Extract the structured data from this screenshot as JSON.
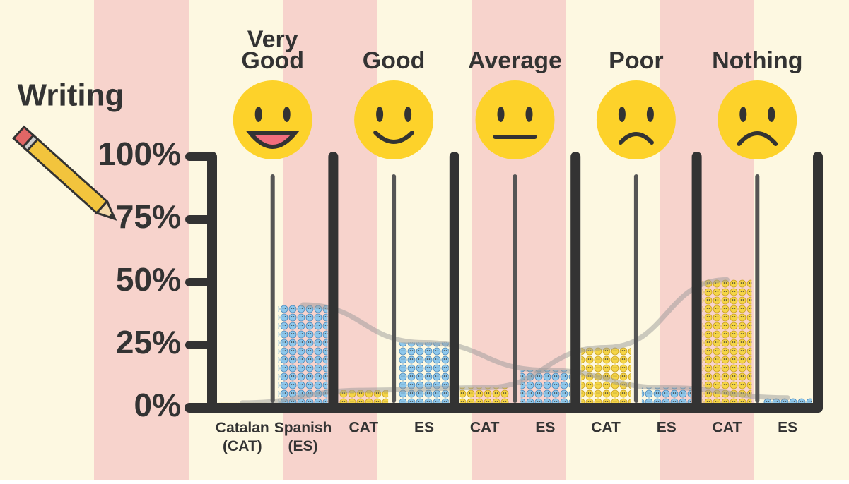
{
  "chart_data": {
    "type": "bar",
    "title": "Writing",
    "categories": [
      "Very Good",
      "Good",
      "Average",
      "Poor",
      "Nothing"
    ],
    "series": [
      {
        "name": "Catalan (CAT)",
        "short": "CAT",
        "color": "#f5d547",
        "values": [
          2,
          7,
          8,
          24,
          51
        ]
      },
      {
        "name": "Spanish (ES)",
        "short": "ES",
        "color": "#8ec8ec",
        "values": [
          41,
          26,
          15,
          8,
          4
        ]
      }
    ],
    "ylim": [
      0,
      100
    ],
    "yticks": [
      {
        "value": 0,
        "label": "0%"
      },
      {
        "value": 25,
        "label": "25%"
      },
      {
        "value": 50,
        "label": "50%"
      },
      {
        "value": 75,
        "label": "75%"
      },
      {
        "value": 100,
        "label": "100%"
      }
    ]
  }
}
